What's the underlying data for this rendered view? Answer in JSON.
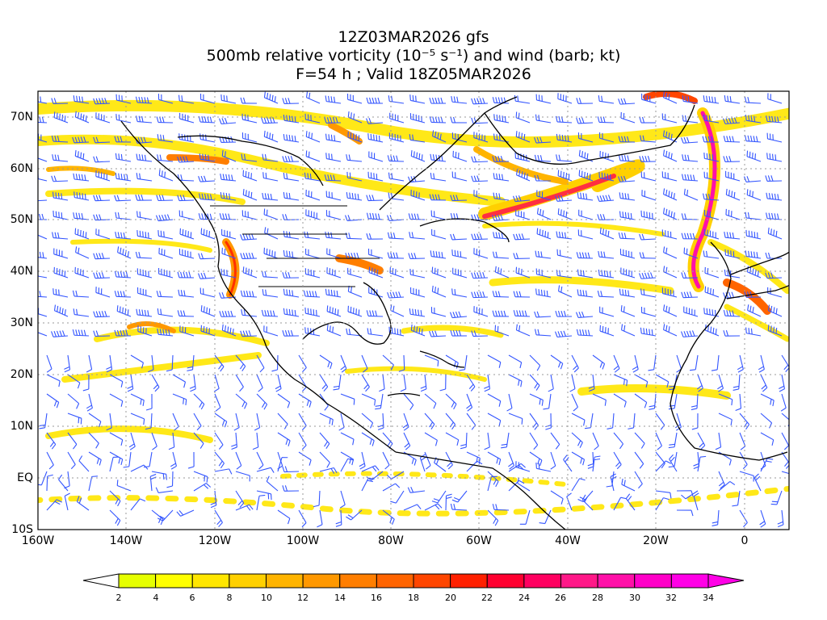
{
  "title": {
    "line1": "12Z03MAR2026 gfs",
    "line2": "500mb relative vorticity (10⁻⁵ s⁻¹) and wind (barb; kt)",
    "line3": "F=54 h ; Valid 18Z05MAR2026"
  },
  "axes": {
    "lat_labels": [
      "70N",
      "60N",
      "50N",
      "40N",
      "30N",
      "20N",
      "10N",
      "EQ",
      "10S"
    ],
    "lon_labels": [
      "160W",
      "140W",
      "120W",
      "100W",
      "80W",
      "60W",
      "40W",
      "20W",
      "0"
    ]
  },
  "colorbar": {
    "ticks": [
      "2",
      "4",
      "6",
      "8",
      "10",
      "12",
      "14",
      "16",
      "18",
      "20",
      "22",
      "24",
      "26",
      "28",
      "30",
      "32",
      "34"
    ],
    "colors": [
      "#e6ff00",
      "#ffff00",
      "#ffe600",
      "#ffd000",
      "#ffb400",
      "#ff9800",
      "#ff7e00",
      "#ff6400",
      "#ff4600",
      "#ff2000",
      "#ff0030",
      "#ff0060",
      "#ff1888",
      "#ff10a8",
      "#ff00c8",
      "#ff00e6"
    ]
  },
  "colors": {
    "barb": "#3355ff",
    "coast": "#000000",
    "grid": "#9a9a9a"
  }
}
